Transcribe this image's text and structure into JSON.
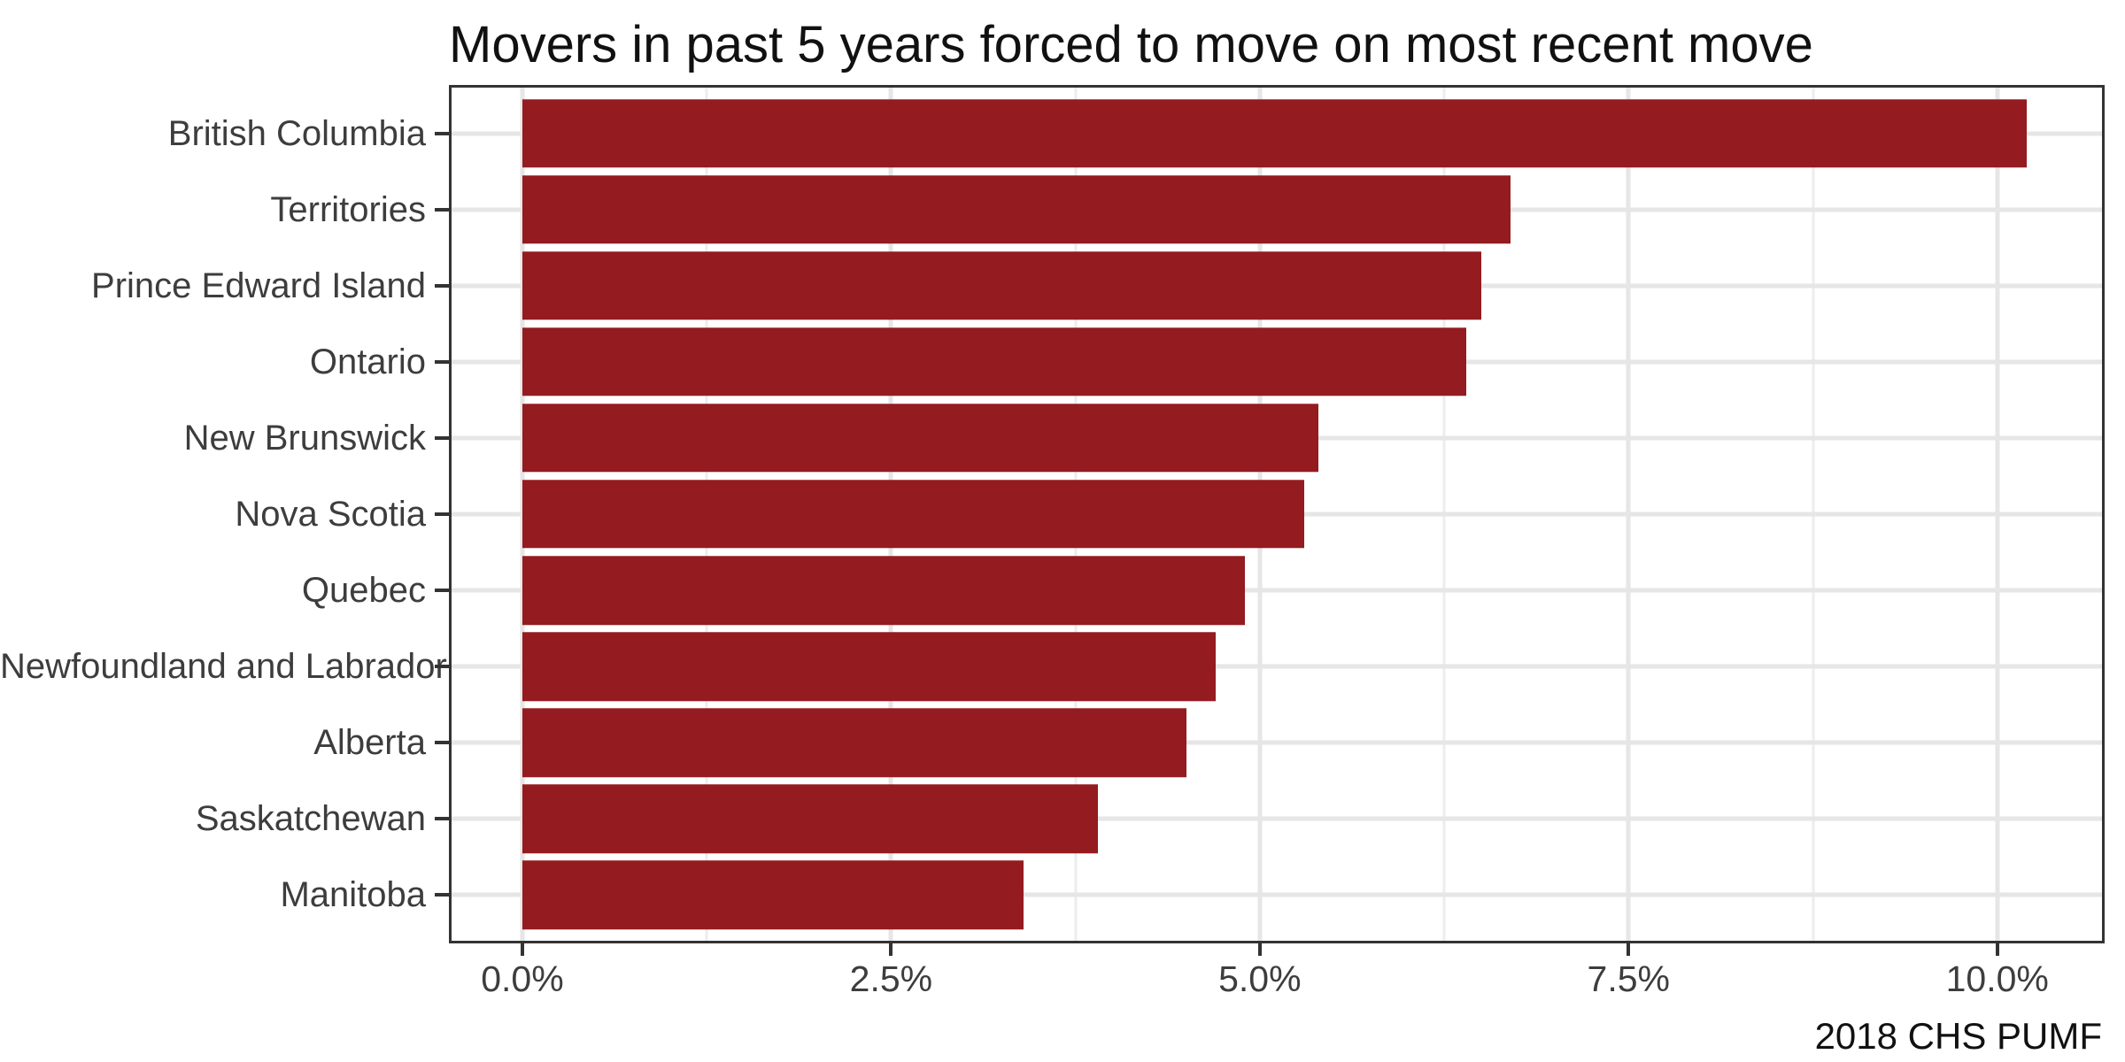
{
  "chart_data": {
    "type": "bar",
    "orientation": "horizontal",
    "title": "Movers in past 5 years forced to move on most recent move",
    "caption": "2018 CHS PUMF",
    "xlabel": "",
    "ylabel": "",
    "unit": "%",
    "categories": [
      "British Columbia",
      "Territories",
      "Prince Edward Island",
      "Ontario",
      "New Brunswick",
      "Nova Scotia",
      "Quebec",
      "Newfoundland and Labrador",
      "Alberta",
      "Saskatchewan",
      "Manitoba"
    ],
    "values": [
      10.2,
      6.7,
      6.5,
      6.4,
      5.4,
      5.3,
      4.9,
      4.7,
      4.5,
      3.9,
      3.4
    ],
    "x_ticks": [
      {
        "value": 0.0,
        "label": "0.0%"
      },
      {
        "value": 2.5,
        "label": "2.5%"
      },
      {
        "value": 5.0,
        "label": "5.0%"
      },
      {
        "value": 7.5,
        "label": "7.5%"
      },
      {
        "value": 10.0,
        "label": "10.0%"
      }
    ],
    "x_minor_gridlines": [
      1.25,
      3.75,
      6.25,
      8.75
    ],
    "xlim": [
      -0.48,
      10.71
    ],
    "bar_relative_width": 0.9,
    "grid": "major-and-minor",
    "legend": "none"
  },
  "colors": {
    "bar": "#941B1F",
    "background": "#FFFFFF",
    "panel_border": "#333333",
    "grid_major": "#E6E6E6",
    "grid_minor": "#EDEDED",
    "axis_text": "#3D3D3D",
    "title_text": "#111111",
    "tick_mark": "#333333"
  }
}
